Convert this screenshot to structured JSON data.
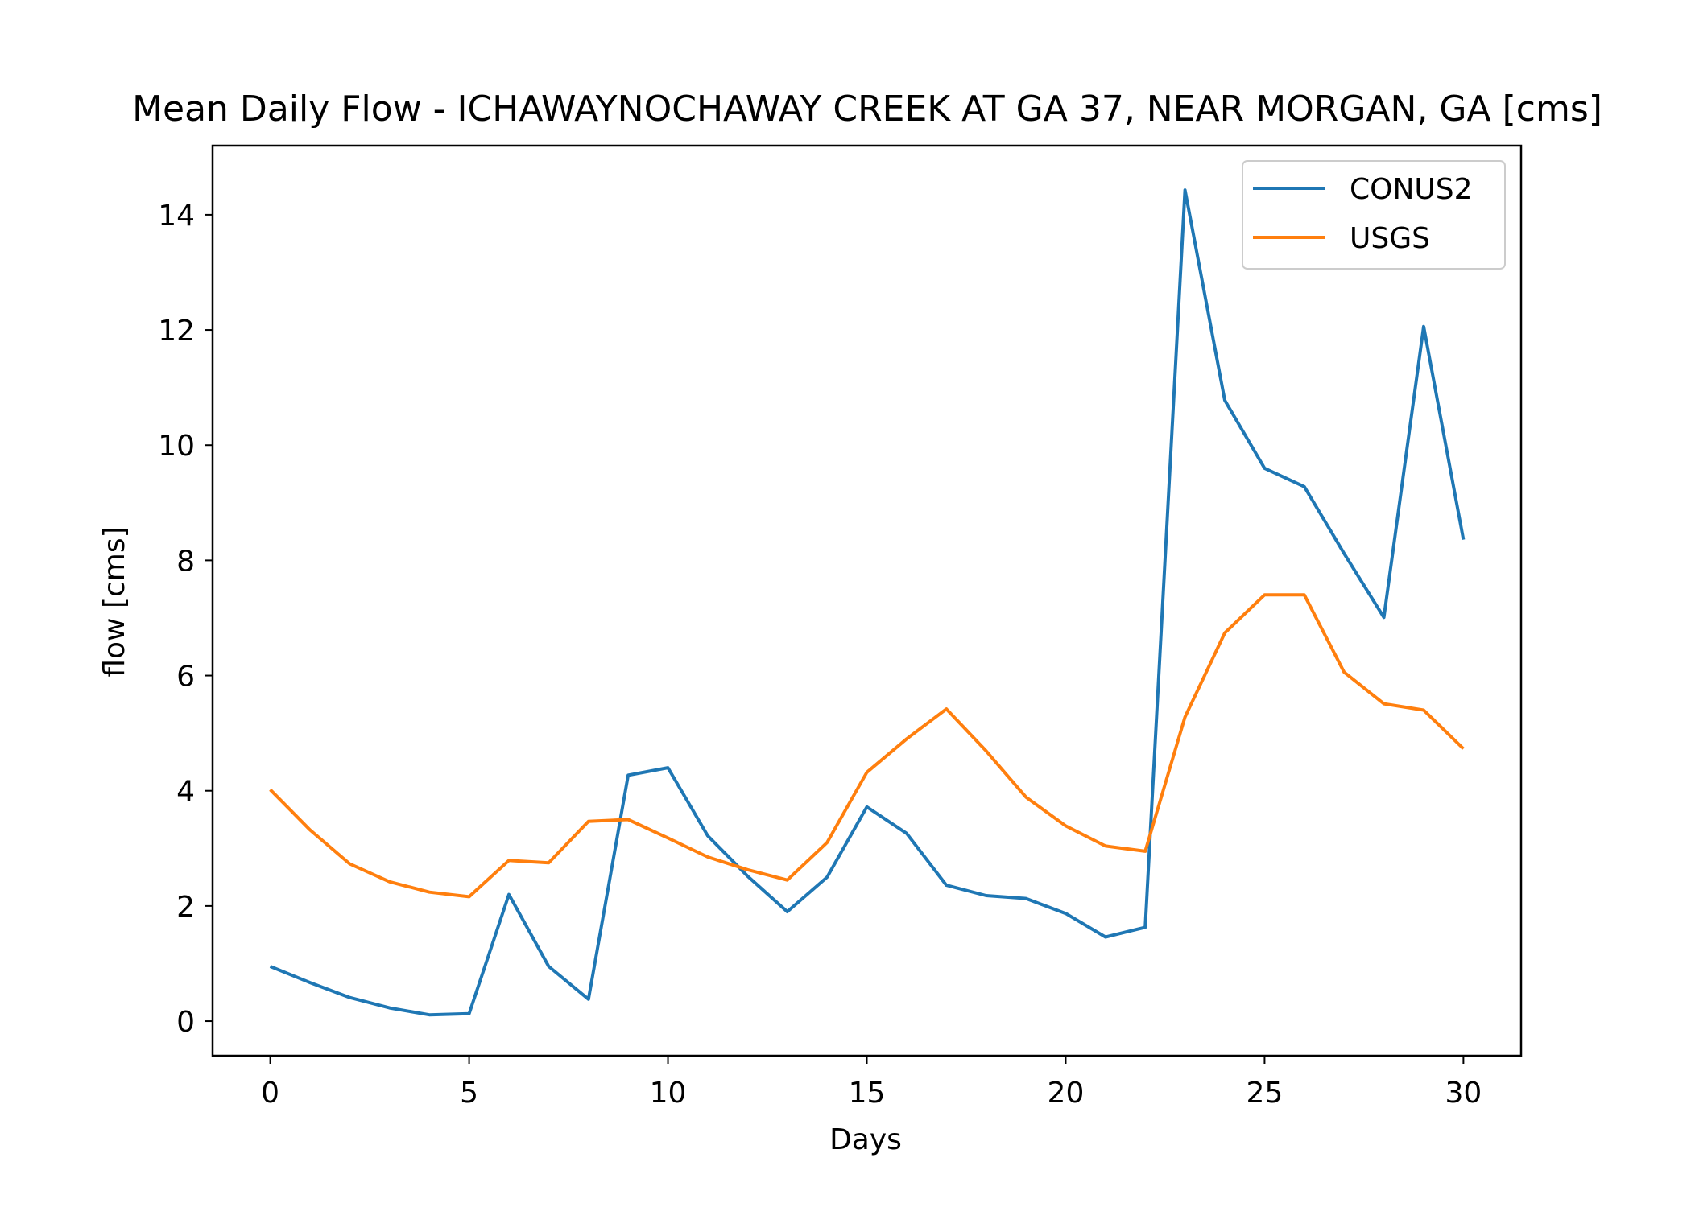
{
  "chart_data": {
    "type": "line",
    "title": "Mean Daily Flow - ICHAWAYNOCHAWAY CREEK AT GA 37, NEAR MORGAN, GA [cms]",
    "xlabel": "Days",
    "ylabel": "flow [cms]",
    "xlim": [
      -1.45,
      31.45
    ],
    "ylim": [
      -0.6,
      15.2
    ],
    "xticks": [
      0,
      5,
      10,
      15,
      20,
      25,
      30
    ],
    "yticks": [
      0,
      2,
      4,
      6,
      8,
      10,
      12,
      14
    ],
    "grid": false,
    "legend_position": "upper-right",
    "x": [
      0,
      1,
      2,
      3,
      4,
      5,
      6,
      7,
      8,
      9,
      10,
      11,
      12,
      13,
      14,
      15,
      16,
      17,
      18,
      19,
      20,
      21,
      22,
      23,
      24,
      25,
      26,
      27,
      28,
      29,
      30
    ],
    "series": [
      {
        "name": "CONUS2",
        "color": "#1f77b4",
        "values": [
          0.95,
          0.67,
          0.41,
          0.23,
          0.11,
          0.13,
          2.2,
          0.95,
          0.38,
          4.27,
          4.4,
          3.22,
          2.52,
          1.9,
          2.5,
          3.72,
          3.26,
          2.36,
          2.18,
          2.13,
          1.87,
          1.46,
          1.63,
          14.43,
          10.78,
          9.6,
          9.28,
          8.12,
          7.01,
          12.06,
          8.36
        ]
      },
      {
        "name": "USGS",
        "color": "#ff7f0e",
        "values": [
          4.02,
          3.32,
          2.73,
          2.42,
          2.24,
          2.16,
          2.79,
          2.75,
          3.47,
          3.5,
          3.18,
          2.85,
          2.63,
          2.45,
          3.1,
          4.32,
          4.9,
          5.42,
          4.69,
          3.89,
          3.39,
          3.04,
          2.95,
          5.28,
          6.74,
          7.4,
          7.4,
          6.06,
          5.51,
          5.4,
          4.73
        ]
      }
    ]
  }
}
